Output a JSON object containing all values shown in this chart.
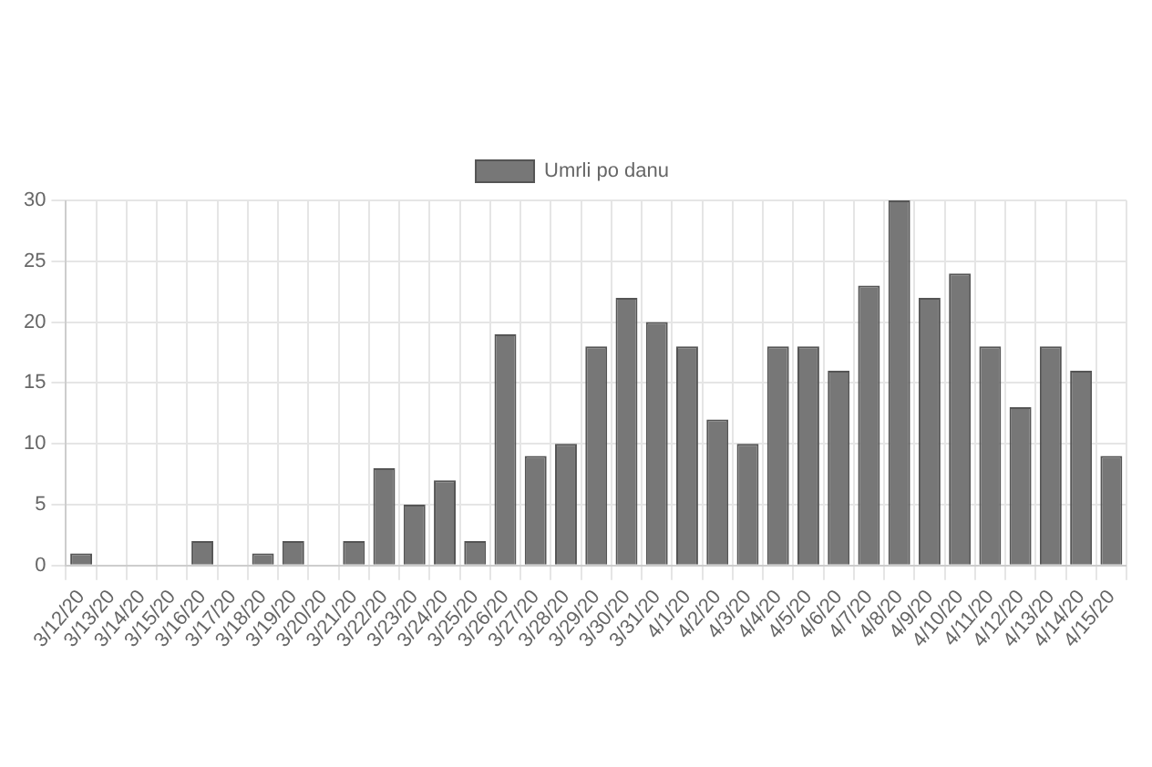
{
  "chart_data": {
    "type": "bar",
    "categories": [
      "3/12/20",
      "3/13/20",
      "3/14/20",
      "3/15/20",
      "3/16/20",
      "3/17/20",
      "3/18/20",
      "3/19/20",
      "3/20/20",
      "3/21/20",
      "3/22/20",
      "3/23/20",
      "3/24/20",
      "3/25/20",
      "3/26/20",
      "3/27/20",
      "3/28/20",
      "3/29/20",
      "3/30/20",
      "3/31/20",
      "4/1/20",
      "4/2/20",
      "4/3/20",
      "4/4/20",
      "4/5/20",
      "4/6/20",
      "4/7/20",
      "4/8/20",
      "4/9/20",
      "4/10/20",
      "4/11/20",
      "4/12/20",
      "4/13/20",
      "4/14/20",
      "4/15/20"
    ],
    "series": [
      {
        "name": "Umrli po danu",
        "color": "#777777",
        "values": [
          1,
          0,
          0,
          0,
          2,
          0,
          1,
          2,
          0,
          2,
          8,
          5,
          7,
          2,
          19,
          9,
          10,
          18,
          22,
          20,
          18,
          12,
          10,
          18,
          18,
          16,
          23,
          30,
          22,
          24,
          18,
          13,
          18,
          16,
          9
        ]
      }
    ],
    "ylim": [
      0,
      30
    ],
    "yticks": [
      0,
      5,
      10,
      15,
      20,
      25,
      30
    ],
    "grid": true,
    "legend": "top"
  }
}
